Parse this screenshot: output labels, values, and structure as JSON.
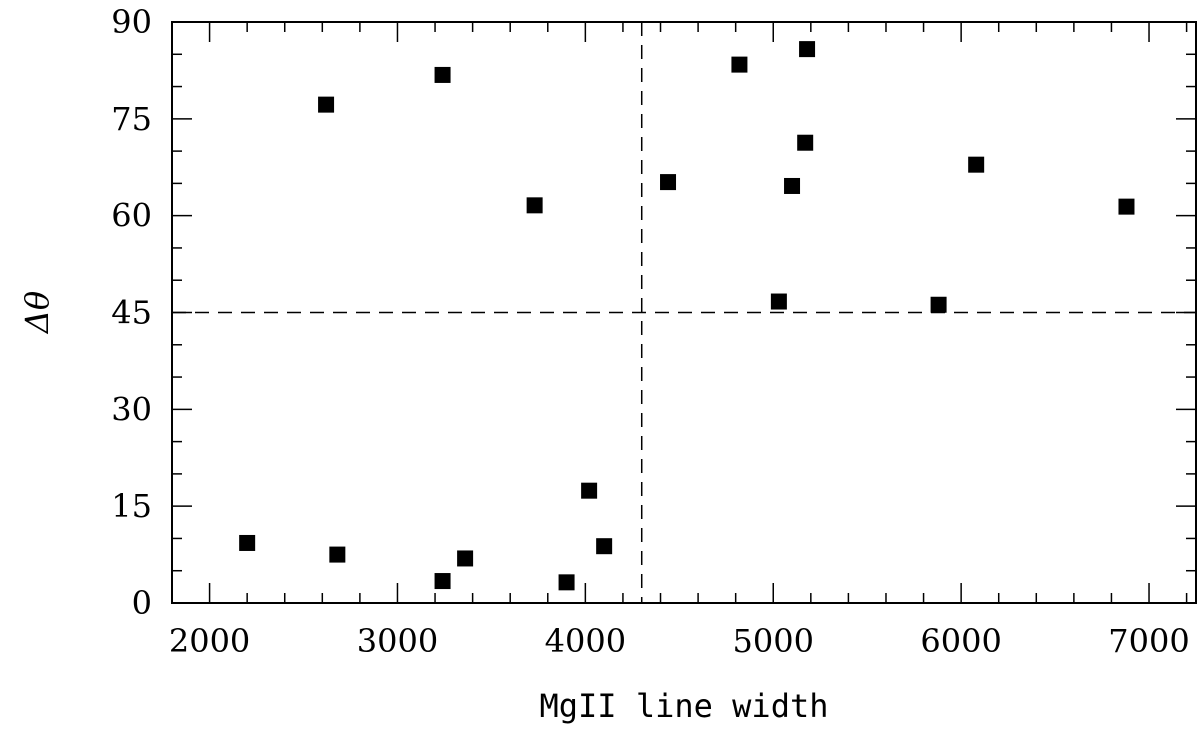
{
  "chart_data": {
    "type": "scatter",
    "title": "",
    "xlabel": "MgII line width",
    "ylabel": "Δθ",
    "xlim": [
      1800,
      7250
    ],
    "ylim": [
      0,
      90
    ],
    "xticks": [
      2000,
      3000,
      4000,
      5000,
      6000,
      7000
    ],
    "xtick_labels": [
      "2000",
      "3000",
      "4000",
      "5000",
      "6000",
      "7000"
    ],
    "yticks": [
      0,
      15,
      30,
      45,
      60,
      75,
      90
    ],
    "ytick_labels": [
      "0",
      "15",
      "30",
      "45",
      "60",
      "75",
      "90"
    ],
    "x_minor_step": 200,
    "y_minor_step": 5,
    "grid": false,
    "reference_lines": [
      {
        "orientation": "vertical",
        "value": 4300,
        "style": "dashed"
      },
      {
        "orientation": "horizontal",
        "value": 45,
        "style": "dashed"
      }
    ],
    "marker": "square",
    "marker_color": "#000000",
    "points": [
      {
        "x": 2200,
        "y": 9.3
      },
      {
        "x": 2620,
        "y": 77.2
      },
      {
        "x": 2680,
        "y": 7.5
      },
      {
        "x": 3240,
        "y": 81.8
      },
      {
        "x": 3240,
        "y": 3.4
      },
      {
        "x": 3360,
        "y": 6.9
      },
      {
        "x": 3730,
        "y": 61.6
      },
      {
        "x": 3900,
        "y": 3.2
      },
      {
        "x": 4020,
        "y": 17.4
      },
      {
        "x": 4100,
        "y": 8.8
      },
      {
        "x": 4440,
        "y": 65.2
      },
      {
        "x": 4820,
        "y": 83.4
      },
      {
        "x": 5030,
        "y": 46.7
      },
      {
        "x": 5100,
        "y": 64.6
      },
      {
        "x": 5170,
        "y": 71.3
      },
      {
        "x": 5180,
        "y": 85.8
      },
      {
        "x": 5880,
        "y": 46.2
      },
      {
        "x": 6080,
        "y": 67.9
      },
      {
        "x": 6880,
        "y": 61.4
      }
    ]
  }
}
